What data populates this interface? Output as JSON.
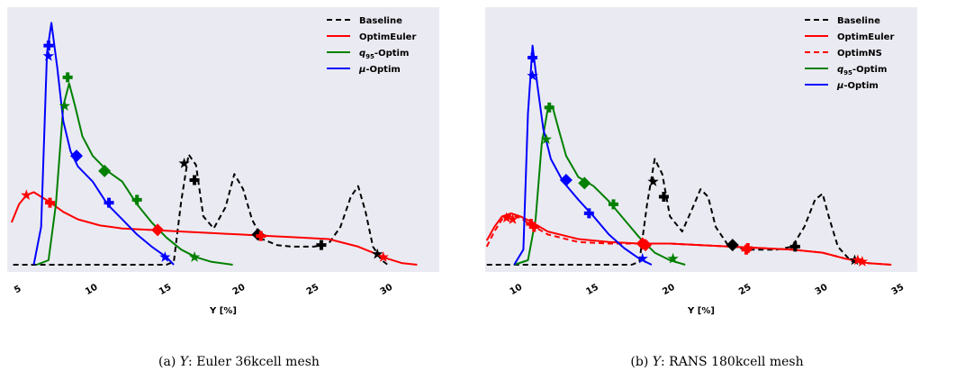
{
  "chart_data": [
    {
      "type": "line",
      "xlabel": "Y [%]",
      "xlim": [
        4.2,
        33.5
      ],
      "xticks": [
        5,
        10,
        15,
        20,
        25,
        30
      ],
      "caption": {
        "label": "(a)",
        "var": "Y",
        "text": ": Euler 36kcell mesh"
      },
      "legend_position": "top-right",
      "series": [
        {
          "name": "Baseline",
          "color": "#000000",
          "dash": "6,4",
          "x": [
            4.6,
            15.0,
            15.5,
            16.0,
            16.5,
            17.0,
            17.5,
            18.2,
            19.0,
            19.6,
            20.2,
            20.8,
            21.5,
            22.5,
            23.5,
            25.0,
            26.0,
            26.8,
            27.5,
            28.0,
            28.5,
            29.0,
            29.6,
            30.0
          ],
          "y": [
            0.0,
            0.0,
            0.02,
            0.42,
            0.73,
            0.66,
            0.32,
            0.24,
            0.38,
            0.6,
            0.5,
            0.3,
            0.17,
            0.13,
            0.12,
            0.12,
            0.14,
            0.25,
            0.45,
            0.52,
            0.35,
            0.12,
            0.03,
            0.0
          ],
          "markers": [
            {
              "x": 16.2,
              "y": 0.67,
              "shape": "star"
            },
            {
              "x": 16.9,
              "y": 0.56,
              "shape": "plus"
            },
            {
              "x": 21.2,
              "y": 0.2,
              "shape": "diamond"
            },
            {
              "x": 25.5,
              "y": 0.13,
              "shape": "plus"
            },
            {
              "x": 29.3,
              "y": 0.07,
              "shape": "star"
            }
          ]
        },
        {
          "name": "OptimEuler",
          "color": "#ff0000",
          "dash": "",
          "x": [
            4.5,
            5.0,
            5.5,
            6.0,
            6.5,
            7.0,
            8.0,
            9.0,
            10.5,
            12.0,
            14.0,
            16.0,
            18.0,
            20.0,
            22.0,
            24.0,
            26.0,
            28.0,
            29.0,
            30.0,
            31.0,
            32.0
          ],
          "y": [
            0.28,
            0.4,
            0.46,
            0.48,
            0.45,
            0.42,
            0.35,
            0.3,
            0.26,
            0.24,
            0.23,
            0.22,
            0.21,
            0.2,
            0.19,
            0.18,
            0.17,
            0.12,
            0.08,
            0.04,
            0.01,
            0.0
          ],
          "markers": [
            {
              "x": 5.5,
              "y": 0.46,
              "shape": "star"
            },
            {
              "x": 7.1,
              "y": 0.41,
              "shape": "plus"
            },
            {
              "x": 14.4,
              "y": 0.23,
              "shape": "diamond"
            },
            {
              "x": 21.4,
              "y": 0.19,
              "shape": "plus"
            },
            {
              "x": 29.7,
              "y": 0.05,
              "shape": "star"
            }
          ]
        },
        {
          "name": "q95-Optim",
          "color": "#008000",
          "dash": "",
          "x": [
            6.2,
            7.0,
            7.5,
            8.0,
            8.4,
            8.8,
            9.3,
            10.0,
            11.0,
            12.0,
            13.0,
            14.0,
            15.0,
            16.0,
            17.0,
            18.0,
            19.5
          ],
          "y": [
            0.0,
            0.03,
            0.4,
            1.05,
            1.2,
            1.05,
            0.85,
            0.72,
            0.62,
            0.55,
            0.4,
            0.28,
            0.18,
            0.1,
            0.05,
            0.02,
            0.0
          ],
          "markers": [
            {
              "x": 8.1,
              "y": 1.05,
              "shape": "star"
            },
            {
              "x": 8.3,
              "y": 1.24,
              "shape": "plus"
            },
            {
              "x": 10.8,
              "y": 0.62,
              "shape": "diamond"
            },
            {
              "x": 13.0,
              "y": 0.43,
              "shape": "plus"
            },
            {
              "x": 16.9,
              "y": 0.05,
              "shape": "star"
            }
          ]
        },
        {
          "name": "μ-Optim",
          "color": "#0000ff",
          "dash": "",
          "x": [
            6.0,
            6.5,
            6.9,
            7.2,
            7.6,
            8.0,
            8.5,
            9.0,
            10.0,
            11.0,
            12.0,
            13.0,
            14.0,
            15.0,
            15.5
          ],
          "y": [
            0.0,
            0.25,
            1.4,
            1.6,
            1.3,
            0.95,
            0.75,
            0.65,
            0.55,
            0.4,
            0.3,
            0.2,
            0.12,
            0.05,
            0.0
          ],
          "markers": [
            {
              "x": 7.0,
              "y": 1.38,
              "shape": "star"
            },
            {
              "x": 7.0,
              "y": 1.45,
              "shape": "plus"
            },
            {
              "x": 8.9,
              "y": 0.72,
              "shape": "diamond"
            },
            {
              "x": 11.1,
              "y": 0.41,
              "shape": "plus"
            },
            {
              "x": 14.9,
              "y": 0.05,
              "shape": "star"
            }
          ]
        }
      ]
    },
    {
      "type": "line",
      "xlabel": "Y [%]",
      "xlim": [
        7.9,
        36.2
      ],
      "xticks": [
        10,
        15,
        20,
        25,
        30,
        35
      ],
      "caption": {
        "label": "(b)",
        "var": "Y",
        "text": ": RANS 180kcell mesh"
      },
      "legend_position": "top-right",
      "series": [
        {
          "name": "Baseline",
          "color": "#000000",
          "dash": "6,4",
          "x": [
            8.0,
            17.5,
            18.0,
            18.5,
            19.0,
            19.5,
            20.0,
            20.8,
            21.5,
            22.0,
            22.5,
            23.0,
            23.8,
            25.0,
            27.0,
            28.0,
            28.8,
            29.5,
            30.0,
            30.4,
            31.0,
            31.8,
            32.5
          ],
          "y": [
            0.0,
            0.0,
            0.02,
            0.4,
            0.7,
            0.6,
            0.32,
            0.22,
            0.38,
            0.5,
            0.45,
            0.25,
            0.13,
            0.1,
            0.1,
            0.12,
            0.25,
            0.43,
            0.47,
            0.32,
            0.12,
            0.03,
            0.0
          ],
          "markers": [
            {
              "x": 18.9,
              "y": 0.55,
              "shape": "star"
            },
            {
              "x": 19.6,
              "y": 0.45,
              "shape": "plus"
            },
            {
              "x": 24.1,
              "y": 0.13,
              "shape": "diamond"
            },
            {
              "x": 28.2,
              "y": 0.12,
              "shape": "plus"
            },
            {
              "x": 32.1,
              "y": 0.03,
              "shape": "star"
            }
          ]
        },
        {
          "name": "OptimEuler",
          "color": "#ff0000",
          "dash": "",
          "x": [
            8.0,
            8.5,
            9.0,
            9.6,
            10.2,
            10.8,
            12.0,
            14.0,
            16.0,
            18.0,
            20.0,
            22.0,
            24.0,
            26.0,
            28.0,
            30.0,
            31.5,
            33.0,
            34.5
          ],
          "y": [
            0.16,
            0.25,
            0.32,
            0.34,
            0.32,
            0.29,
            0.22,
            0.17,
            0.15,
            0.14,
            0.14,
            0.13,
            0.12,
            0.11,
            0.1,
            0.08,
            0.04,
            0.01,
            0.0
          ],
          "markers": [
            {
              "x": 9.3,
              "y": 0.31,
              "shape": "star"
            },
            {
              "x": 10.9,
              "y": 0.27,
              "shape": "plus"
            },
            {
              "x": 18.2,
              "y": 0.14,
              "shape": "diamond"
            },
            {
              "x": 25.1,
              "y": 0.11,
              "shape": "plus"
            },
            {
              "x": 32.6,
              "y": 0.02,
              "shape": "star"
            }
          ]
        },
        {
          "name": "OptimNS",
          "color": "#ff0000",
          "dash": "6,4",
          "x": [
            8.0,
            8.5,
            9.0,
            9.6,
            10.2,
            10.8,
            12.0,
            14.0,
            16.0,
            18.0,
            20.0,
            22.0,
            24.0,
            26.0,
            28.0,
            30.0,
            31.5,
            33.0,
            34.5
          ],
          "y": [
            0.12,
            0.22,
            0.3,
            0.33,
            0.31,
            0.27,
            0.2,
            0.15,
            0.14,
            0.14,
            0.14,
            0.13,
            0.12,
            0.11,
            0.1,
            0.08,
            0.04,
            0.01,
            0.0
          ],
          "markers": [
            {
              "x": 9.7,
              "y": 0.3,
              "shape": "star"
            },
            {
              "x": 11.1,
              "y": 0.25,
              "shape": "plus"
            },
            {
              "x": 18.4,
              "y": 0.13,
              "shape": "diamond"
            },
            {
              "x": 25.0,
              "y": 0.1,
              "shape": "plus"
            },
            {
              "x": 32.3,
              "y": 0.03,
              "shape": "star"
            }
          ]
        },
        {
          "name": "q95-Optim",
          "color": "#008000",
          "dash": "",
          "x": [
            9.8,
            10.7,
            11.2,
            11.6,
            12.0,
            12.3,
            12.7,
            13.2,
            14.0,
            15.0,
            16.0,
            17.0,
            18.0,
            19.0,
            20.0,
            21.0
          ],
          "y": [
            0.0,
            0.03,
            0.3,
            0.8,
            1.03,
            1.05,
            0.9,
            0.72,
            0.58,
            0.52,
            0.42,
            0.3,
            0.18,
            0.08,
            0.03,
            0.0
          ],
          "markers": [
            {
              "x": 11.9,
              "y": 0.83,
              "shape": "star"
            },
            {
              "x": 12.1,
              "y": 1.04,
              "shape": "plus"
            },
            {
              "x": 14.4,
              "y": 0.54,
              "shape": "diamond"
            },
            {
              "x": 16.3,
              "y": 0.4,
              "shape": "plus"
            },
            {
              "x": 20.2,
              "y": 0.04,
              "shape": "star"
            }
          ]
        },
        {
          "name": "μ-Optim",
          "color": "#0000ff",
          "dash": "",
          "x": [
            9.8,
            10.4,
            10.7,
            11.0,
            11.3,
            11.7,
            12.2,
            13.0,
            14.0,
            15.0,
            16.0,
            17.0,
            18.0,
            18.8
          ],
          "y": [
            0.0,
            0.1,
            1.0,
            1.45,
            1.2,
            0.9,
            0.7,
            0.55,
            0.43,
            0.32,
            0.2,
            0.11,
            0.04,
            0.0
          ],
          "markers": [
            {
              "x": 11.0,
              "y": 1.25,
              "shape": "star"
            },
            {
              "x": 11.0,
              "y": 1.37,
              "shape": "plus"
            },
            {
              "x": 13.2,
              "y": 0.56,
              "shape": "diamond"
            },
            {
              "x": 14.7,
              "y": 0.34,
              "shape": "plus"
            },
            {
              "x": 18.2,
              "y": 0.04,
              "shape": "star"
            }
          ]
        }
      ]
    }
  ]
}
